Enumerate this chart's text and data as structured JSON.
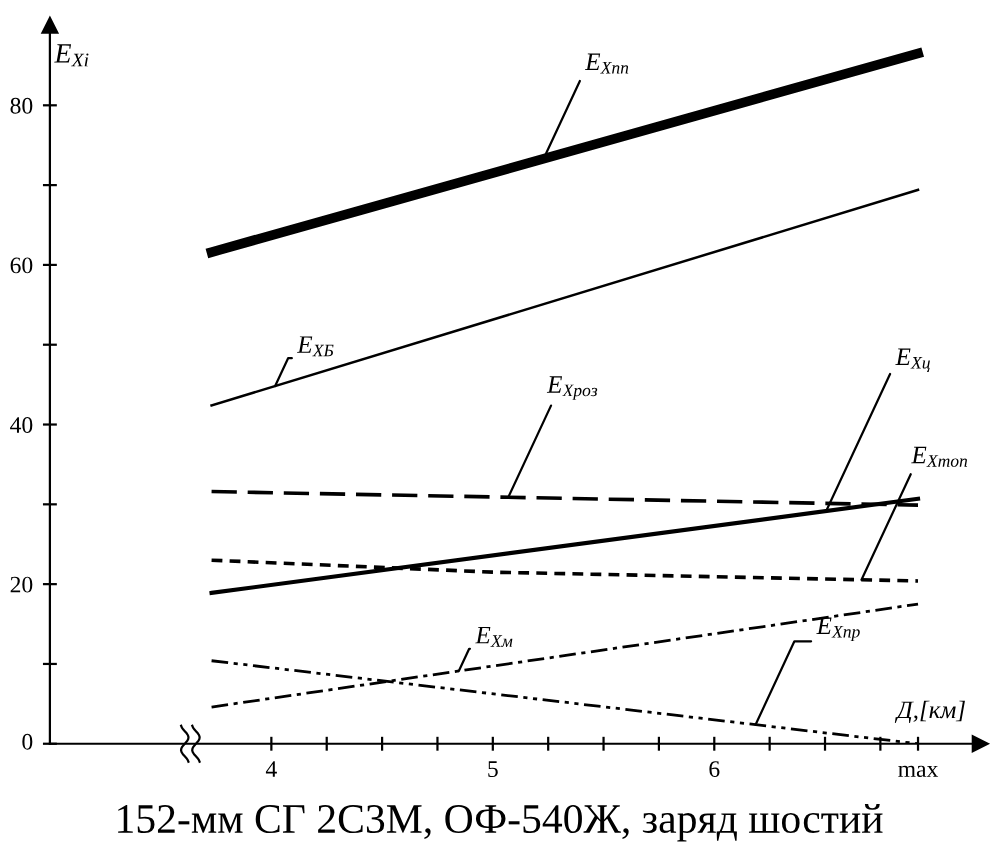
{
  "chart_data": {
    "type": "line",
    "xlabel": "Д,[км]",
    "ylabel": "E$_{Xi}$",
    "xlim": [
      3.0,
      7.2
    ],
    "ylim": [
      0,
      90
    ],
    "xticks": [
      4,
      {
        "value": 4.25,
        "label": null
      },
      {
        "value": 4.5,
        "label": null
      },
      {
        "value": 4.75,
        "label": null
      },
      5,
      {
        "value": 5.25,
        "label": null
      },
      {
        "value": 5.5,
        "label": null
      },
      {
        "value": 5.75,
        "label": null
      },
      6,
      {
        "value": 6.25,
        "label": null
      },
      {
        "value": 6.5,
        "label": null
      },
      {
        "value": 6.75,
        "label": null
      },
      {
        "value": 6.92,
        "label": "max"
      }
    ],
    "yticks": [
      0,
      {
        "value": 10,
        "label": null
      },
      20,
      {
        "value": 30,
        "label": null
      },
      40,
      {
        "value": 50,
        "label": null
      },
      60,
      {
        "value": 70,
        "label": null
      },
      80
    ],
    "grid": false,
    "legend": false,
    "marker": "none",
    "series": [
      {
        "name": "E$_{Xпп}$",
        "color": "#000000",
        "line_style": "solid",
        "x": [
          3.73,
          6.92
        ],
        "values": [
          61.6,
          86.5
        ]
      },
      {
        "name": "E$_{XБ}$",
        "color": "#000000",
        "line_style": "solid",
        "x": [
          3.73,
          6.92
        ],
        "values": [
          42.4,
          69.4
        ]
      },
      {
        "name": "E$_{Xроз}$",
        "color": "#000000",
        "line_style": "dashed",
        "x": [
          3.73,
          6.92
        ],
        "values": [
          31.6,
          29.9
        ]
      },
      {
        "name": "E$_{Xц}$",
        "color": "#000000",
        "line_style": "solid",
        "x": [
          3.73,
          6.92
        ],
        "values": [
          18.9,
          30.7
        ]
      },
      {
        "name": "E$_{Xтоп}$",
        "color": "#000000",
        "line_style": "dotted",
        "x": [
          3.73,
          5.0,
          6.92
        ],
        "values": [
          23.0,
          21.5,
          20.4
        ]
      },
      {
        "name": "E$_{Xм}$",
        "color": "#000000",
        "line_style": "dashdot",
        "x": [
          3.73,
          6.92
        ],
        "values": [
          4.6,
          17.5
        ]
      },
      {
        "name": "E$_{Xпр}$",
        "color": "#000000",
        "line_style": "dashdotdot",
        "x": [
          3.73,
          6.92
        ],
        "values": [
          10.4,
          0.0
        ]
      }
    ],
    "annotations": [
      "152-мм СГ 2С3М, ОФ-540Ж, заряд шостий"
    ]
  }
}
